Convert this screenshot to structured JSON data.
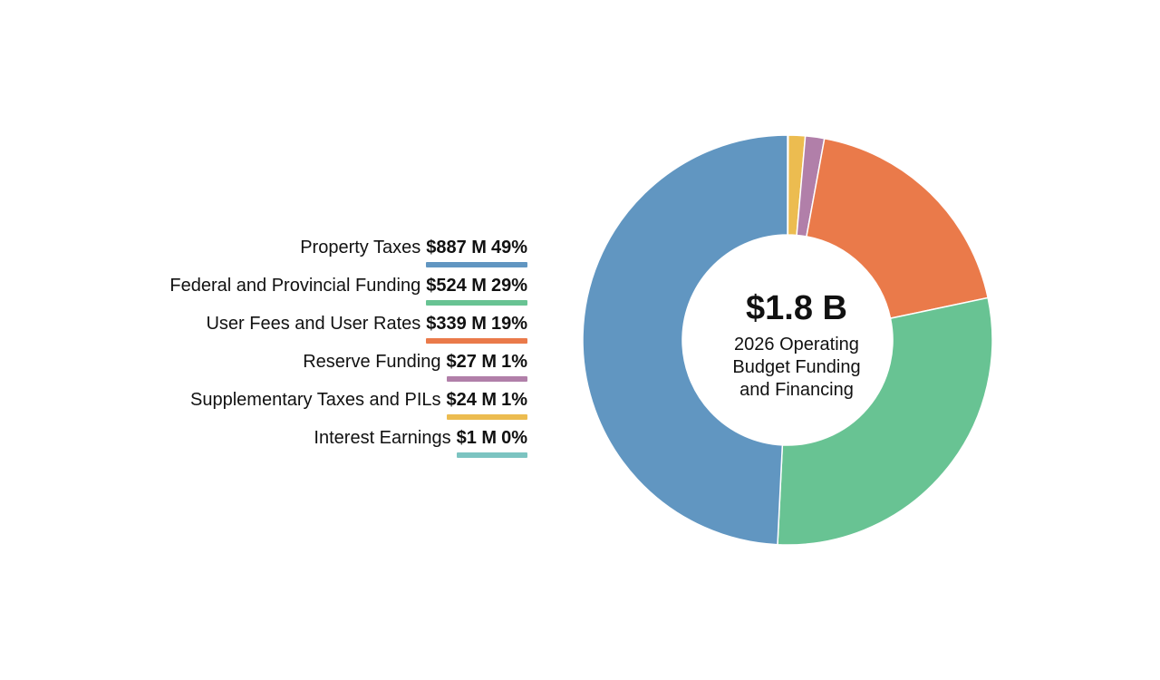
{
  "chart_data": {
    "type": "pie",
    "center_total": "$1.8 B",
    "center_caption": "2026 Operating Budget Funding and Financing",
    "categories": [
      "Interest Earnings",
      "Supplementary Taxes and PILs",
      "Reserve Funding",
      "User Fees and User Rates",
      "Federal and Provincial Funding",
      "Property Taxes"
    ],
    "values": [
      1,
      24,
      27,
      339,
      524,
      887
    ],
    "amount_labels": [
      "$1 M",
      "$24 M",
      "$27 M",
      "$339 M",
      "$524 M",
      "$887 M"
    ],
    "percent_labels": [
      "0%",
      "1%",
      "1%",
      "19%",
      "29%",
      "49%"
    ],
    "colors": [
      "#7cc4c1",
      "#ecbc50",
      "#b17fa9",
      "#ea7a4a",
      "#68c393",
      "#6196c1"
    ],
    "legend_order": [
      5,
      4,
      3,
      2,
      1,
      0
    ],
    "legend_position": "left"
  }
}
